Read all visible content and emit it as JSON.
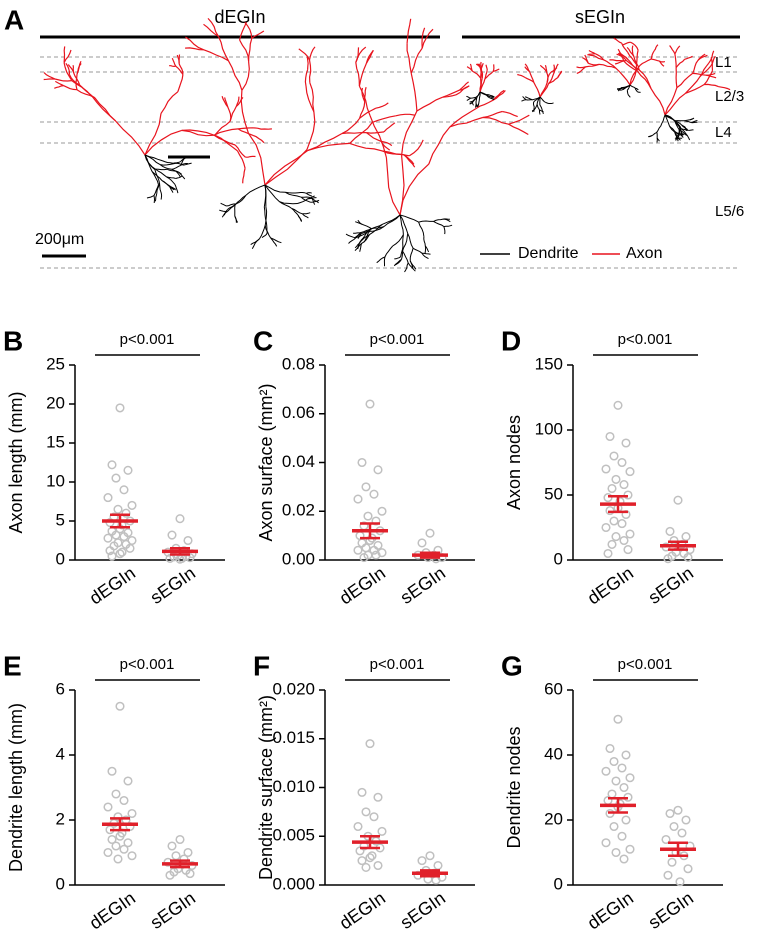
{
  "panel_a": {
    "label": "A",
    "groups": [
      "dEGIn",
      "sEGIn"
    ],
    "layers": [
      "L1",
      "L2/3",
      "L4",
      "L5/6"
    ],
    "scale_bar": "200μm",
    "legend": [
      {
        "name": "Dendrite",
        "color": "#000000"
      },
      {
        "name": "Axon",
        "color": "#e8141e"
      }
    ]
  },
  "chart_data": [
    {
      "type": "dot",
      "label": "B",
      "ylabel": "Axon length (mm)",
      "annotation": "p<0.001",
      "ylim": [
        0,
        25
      ],
      "yticks": [
        0,
        5,
        10,
        15,
        20,
        25
      ],
      "point_color": "#c0c0c0",
      "mean_color": "#e0202a",
      "groups": [
        {
          "name": "dEGIn",
          "values": [
            19.5,
            12.2,
            11.5,
            10.5,
            9,
            8,
            7,
            6.5,
            6,
            5.5,
            5,
            4.8,
            4.5,
            4,
            3.7,
            3.5,
            3.2,
            3,
            2.8,
            2.5,
            2.2,
            2,
            1.8,
            1.5,
            1.2,
            1,
            0.8,
            0.5
          ],
          "mean": 5,
          "sem": 0.8
        },
        {
          "name": "sEGIn",
          "values": [
            5.3,
            3.2,
            2.5,
            1.5,
            1.2,
            1,
            0.8,
            0.6,
            0.5,
            0.4,
            0.3,
            0.2,
            0.2,
            0.1
          ],
          "mean": 1.1,
          "sem": 0.4
        }
      ]
    },
    {
      "type": "dot",
      "label": "C",
      "ylabel": "Axon surface (mm²)",
      "annotation": "p<0.001",
      "ylim": [
        0,
        0.08
      ],
      "yticks": [
        {
          "value": 0,
          "label": "0.00"
        },
        0.02,
        0.04,
        0.06,
        0.08
      ],
      "point_color": "#c0c0c0",
      "mean_color": "#e0202a",
      "groups": [
        {
          "name": "dEGIn",
          "values": [
            0.064,
            0.04,
            0.037,
            0.03,
            0.027,
            0.025,
            0.02,
            0.018,
            0.016,
            0.014,
            0.012,
            0.01,
            0.009,
            0.008,
            0.007,
            0.006,
            0.005,
            0.004,
            0.004,
            0.003,
            0.002,
            0.002,
            0.001
          ],
          "mean": 0.012,
          "sem": 0.003
        },
        {
          "name": "sEGIn",
          "values": [
            0.011,
            0.007,
            0.004,
            0.003,
            0.002,
            0.002,
            0.001,
            0.001,
            0.0005
          ],
          "mean": 0.002,
          "sem": 0.001
        }
      ]
    },
    {
      "type": "dot",
      "label": "D",
      "ylabel": "Axon nodes",
      "annotation": "p<0.001",
      "ylim": [
        0,
        150
      ],
      "yticks": [
        0,
        50,
        100,
        150
      ],
      "point_color": "#c0c0c0",
      "mean_color": "#e0202a",
      "groups": [
        {
          "name": "dEGIn",
          "values": [
            119,
            95,
            90,
            80,
            75,
            70,
            68,
            62,
            58,
            55,
            50,
            48,
            45,
            40,
            38,
            35,
            30,
            28,
            25,
            20,
            18,
            15,
            12,
            8,
            5
          ],
          "mean": 43,
          "sem": 6
        },
        {
          "name": "sEGIn",
          "values": [
            46,
            22,
            18,
            15,
            12,
            10,
            8,
            6,
            5,
            3,
            2,
            1
          ],
          "mean": 11,
          "sem": 3
        }
      ]
    },
    {
      "type": "dot",
      "label": "E",
      "ylabel": "Dendrite length (mm)",
      "annotation": "p<0.001",
      "ylim": [
        0,
        6
      ],
      "yticks": [
        0,
        2,
        4,
        6
      ],
      "point_color": "#c0c0c0",
      "mean_color": "#e0202a",
      "groups": [
        {
          "name": "dEGIn",
          "values": [
            5.5,
            3.5,
            3.2,
            2.8,
            2.6,
            2.4,
            2.2,
            2.1,
            2,
            1.9,
            1.8,
            1.7,
            1.6,
            1.5,
            1.4,
            1.3,
            1.2,
            1.1,
            1,
            0.9,
            0.8
          ],
          "mean": 1.87,
          "sem": 0.18
        },
        {
          "name": "sEGIn",
          "values": [
            1.4,
            1.2,
            1,
            0.9,
            0.8,
            0.7,
            0.6,
            0.5,
            0.45,
            0.4,
            0.35,
            0.3
          ],
          "mean": 0.65,
          "sem": 0.1
        }
      ]
    },
    {
      "type": "dot",
      "label": "F",
      "ylabel": "Dendrite surface (mm²)",
      "annotation": "p<0.001",
      "ylim": [
        0,
        0.02
      ],
      "yticks": [
        {
          "value": 0,
          "label": "0.000"
        },
        0.005,
        {
          "value": 0.01,
          "label": "0.010"
        },
        0.015,
        {
          "value": 0.02,
          "label": "0.020"
        }
      ],
      "point_color": "#c0c0c0",
      "mean_color": "#e0202a",
      "groups": [
        {
          "name": "dEGIn",
          "values": [
            0.0145,
            0.0095,
            0.009,
            0.0075,
            0.007,
            0.006,
            0.0055,
            0.005,
            0.0045,
            0.004,
            0.0038,
            0.0035,
            0.003,
            0.0028,
            0.0025,
            0.002,
            0.0018
          ],
          "mean": 0.0044,
          "sem": 0.0006
        },
        {
          "name": "sEGIn",
          "values": [
            0.003,
            0.0025,
            0.002,
            0.0015,
            0.0012,
            0.001,
            0.0008,
            0.0006,
            0.0005
          ],
          "mean": 0.0012,
          "sem": 0.0003
        }
      ]
    },
    {
      "type": "dot",
      "label": "G",
      "ylabel": "Dendrite nodes",
      "annotation": "p<0.001",
      "ylim": [
        0,
        60
      ],
      "yticks": [
        0,
        20,
        40,
        60
      ],
      "point_color": "#c0c0c0",
      "mean_color": "#e0202a",
      "groups": [
        {
          "name": "dEGIn",
          "values": [
            51,
            42,
            40,
            38,
            36,
            35,
            33,
            32,
            30,
            28,
            27,
            26,
            25,
            24,
            22,
            20,
            18,
            15,
            13,
            11,
            10,
            8
          ],
          "mean": 24.5,
          "sem": 2.2
        },
        {
          "name": "sEGIn",
          "values": [
            23,
            22,
            20,
            18,
            16,
            14,
            12,
            10,
            9,
            7,
            5,
            3,
            1
          ],
          "mean": 11,
          "sem": 2
        }
      ]
    }
  ]
}
